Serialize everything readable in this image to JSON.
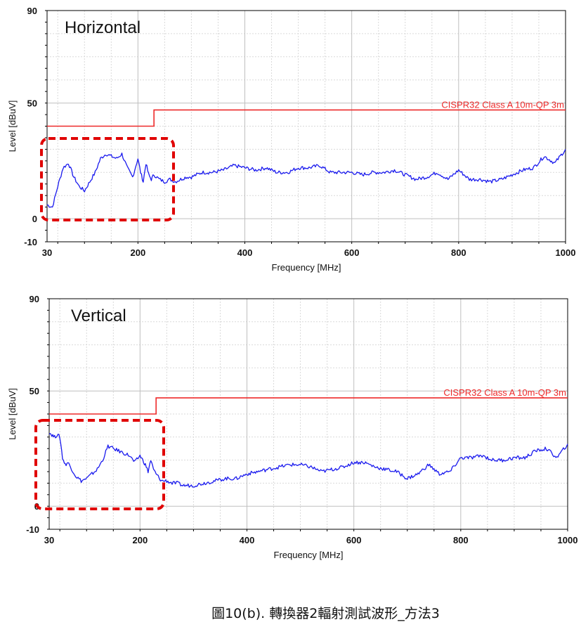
{
  "caption": "圖10(b). 轉換器2輻射測試波形_方法3",
  "colors": {
    "trace": "#1a1aee",
    "limit": "#ee2a2a",
    "highlight_box": "#e00000",
    "grid": "#d9d9d9",
    "grid_major": "#bfbfbf",
    "axis": "#000000"
  },
  "chart_data": [
    {
      "type": "line",
      "title": "Horizontal",
      "xlabel": "Frequency [MHz]",
      "ylabel": "Level [dBuV]",
      "xlim": [
        30,
        1000
      ],
      "ylim": [
        -10,
        90
      ],
      "x_tick_labels": [
        "30",
        "200",
        "400",
        "600",
        "800",
        "1000"
      ],
      "y_tick_labels": [
        "90",
        "50",
        "0",
        "-10"
      ],
      "grid": true,
      "limit_line": {
        "name": "CISPR32 Class A 10m-QP 3m",
        "points": [
          [
            30,
            40
          ],
          [
            230,
            40
          ],
          [
            230,
            47
          ],
          [
            1000,
            47
          ]
        ]
      },
      "series": [
        {
          "x": [
            30,
            40,
            50,
            60,
            70,
            80,
            90,
            100,
            110,
            120,
            130,
            140,
            150,
            160,
            170,
            180,
            190,
            200,
            205,
            210,
            215,
            220,
            225,
            230,
            240,
            250,
            260,
            270,
            280,
            290,
            300,
            320,
            340,
            360,
            380,
            400,
            420,
            440,
            460,
            480,
            500,
            520,
            540,
            560,
            580,
            600,
            620,
            640,
            660,
            680,
            700,
            720,
            740,
            760,
            780,
            800,
            820,
            840,
            860,
            880,
            900,
            920,
            940,
            960,
            980,
            1000
          ],
          "values": [
            6,
            5,
            14,
            22,
            24,
            18,
            14,
            12,
            16,
            20,
            26,
            28,
            27,
            26,
            28,
            22,
            18,
            26,
            20,
            16,
            24,
            19,
            17,
            19,
            17,
            16,
            17,
            16,
            17,
            18,
            18,
            20,
            20,
            21,
            23,
            22,
            21,
            22,
            20,
            20,
            22,
            22,
            23,
            20,
            20,
            20,
            19,
            20,
            20,
            21,
            19,
            17,
            18,
            20,
            17,
            21,
            17,
            17,
            16,
            17,
            19,
            21,
            22,
            27,
            24,
            30
          ]
        }
      ]
    },
    {
      "type": "line",
      "title": "Vertical",
      "xlabel": "Frequency [MHz]",
      "ylabel": "Level [dBuV]",
      "xlim": [
        30,
        1000
      ],
      "ylim": [
        -10,
        90
      ],
      "x_tick_labels": [
        "30",
        "200",
        "400",
        "600",
        "800",
        "1000"
      ],
      "y_tick_labels": [
        "90",
        "50",
        "0",
        "-10"
      ],
      "grid": true,
      "limit_line": {
        "name": "CISPR32 Class A 10m-QP 3m",
        "points": [
          [
            30,
            40
          ],
          [
            230,
            40
          ],
          [
            230,
            47
          ],
          [
            1000,
            47
          ]
        ]
      },
      "series": [
        {
          "x": [
            30,
            35,
            40,
            45,
            50,
            55,
            60,
            65,
            70,
            80,
            90,
            100,
            110,
            120,
            130,
            140,
            150,
            160,
            170,
            180,
            190,
            200,
            205,
            210,
            215,
            220,
            225,
            230,
            240,
            250,
            260,
            270,
            280,
            290,
            300,
            320,
            340,
            360,
            380,
            400,
            420,
            440,
            460,
            480,
            500,
            520,
            540,
            560,
            580,
            600,
            620,
            640,
            660,
            680,
            700,
            720,
            740,
            760,
            780,
            800,
            820,
            840,
            860,
            880,
            900,
            920,
            940,
            960,
            980,
            1000
          ],
          "values": [
            32,
            31,
            30,
            31,
            30,
            21,
            18,
            19,
            17,
            13,
            11,
            12,
            14,
            16,
            20,
            26,
            25,
            24,
            23,
            22,
            19,
            22,
            20,
            18,
            15,
            20,
            16,
            14,
            11,
            11,
            10,
            10,
            9,
            9,
            9,
            10,
            11,
            12,
            12,
            14,
            15,
            16,
            17,
            18,
            18,
            17,
            15,
            16,
            17,
            19,
            19,
            17,
            16,
            15,
            12,
            14,
            18,
            14,
            15,
            21,
            21,
            22,
            20,
            20,
            21,
            21,
            24,
            25,
            21,
            27
          ]
        }
      ]
    }
  ]
}
